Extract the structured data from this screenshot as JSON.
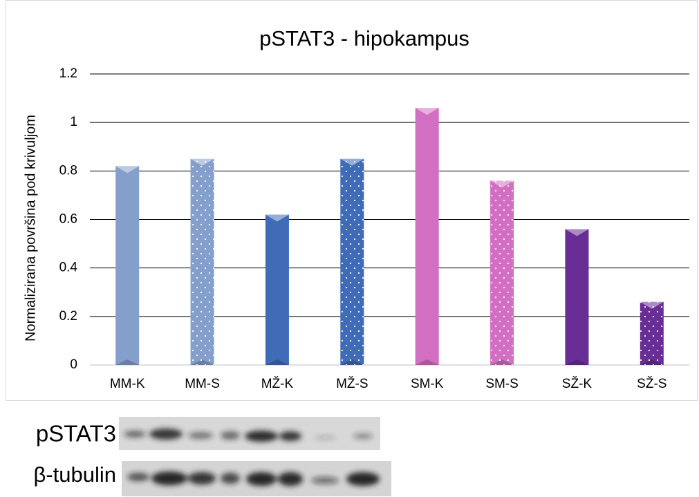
{
  "chart_data": {
    "type": "bar",
    "title": "pSTAT3 - hipokampus",
    "y_label": "Normalizirana površina pod krivuljom",
    "categories": [
      "MM-K",
      "MM-S",
      "MŽ-K",
      "MŽ-S",
      "SM-K",
      "SM-S",
      "SŽ-K",
      "SŽ-S"
    ],
    "values": [
      0.82,
      0.85,
      0.62,
      0.85,
      1.06,
      0.76,
      0.56,
      0.26
    ],
    "colors": [
      "#8eaadb",
      "#8eaadb",
      "#4472c4",
      "#4472c4",
      "#e276cf",
      "#e276cf",
      "#7030a0",
      "#7030a0"
    ],
    "dotted": [
      false,
      true,
      false,
      true,
      false,
      true,
      false,
      true
    ],
    "ylim": [
      0,
      1.2
    ],
    "yticks": [
      0,
      0.2,
      0.4,
      0.6,
      0.8,
      1,
      1.2
    ],
    "grid": true
  },
  "blot": {
    "labels": [
      "pSTAT3",
      "β-tubulin"
    ]
  }
}
